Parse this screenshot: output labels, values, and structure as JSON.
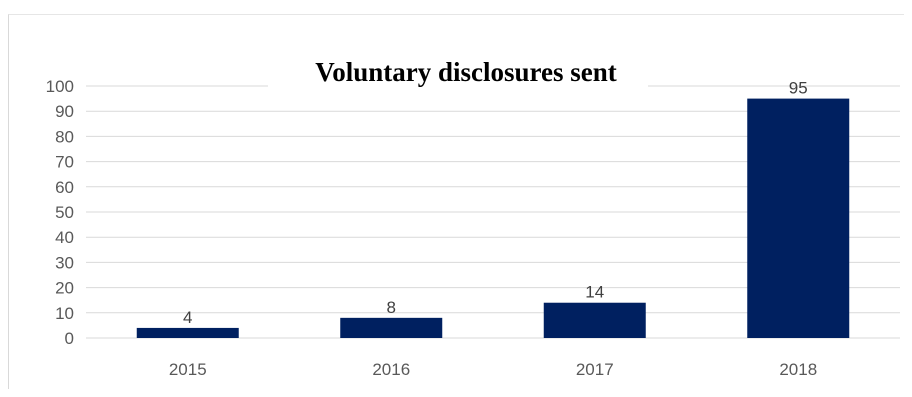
{
  "chart_data": {
    "type": "bar",
    "title": "Voluntary disclosures sent",
    "categories": [
      "2015",
      "2016",
      "2017",
      "2018"
    ],
    "values": [
      4,
      8,
      14,
      95
    ],
    "data_labels": [
      "4",
      "8",
      "14",
      "95"
    ],
    "ylim": [
      0,
      100
    ],
    "yticks": [
      "0",
      "10",
      "20",
      "30",
      "40",
      "50",
      "60",
      "70",
      "80",
      "90",
      "100"
    ],
    "grid": true,
    "legend": "none",
    "bar_color": "#002060",
    "grid_color": "#d9d9d9"
  }
}
